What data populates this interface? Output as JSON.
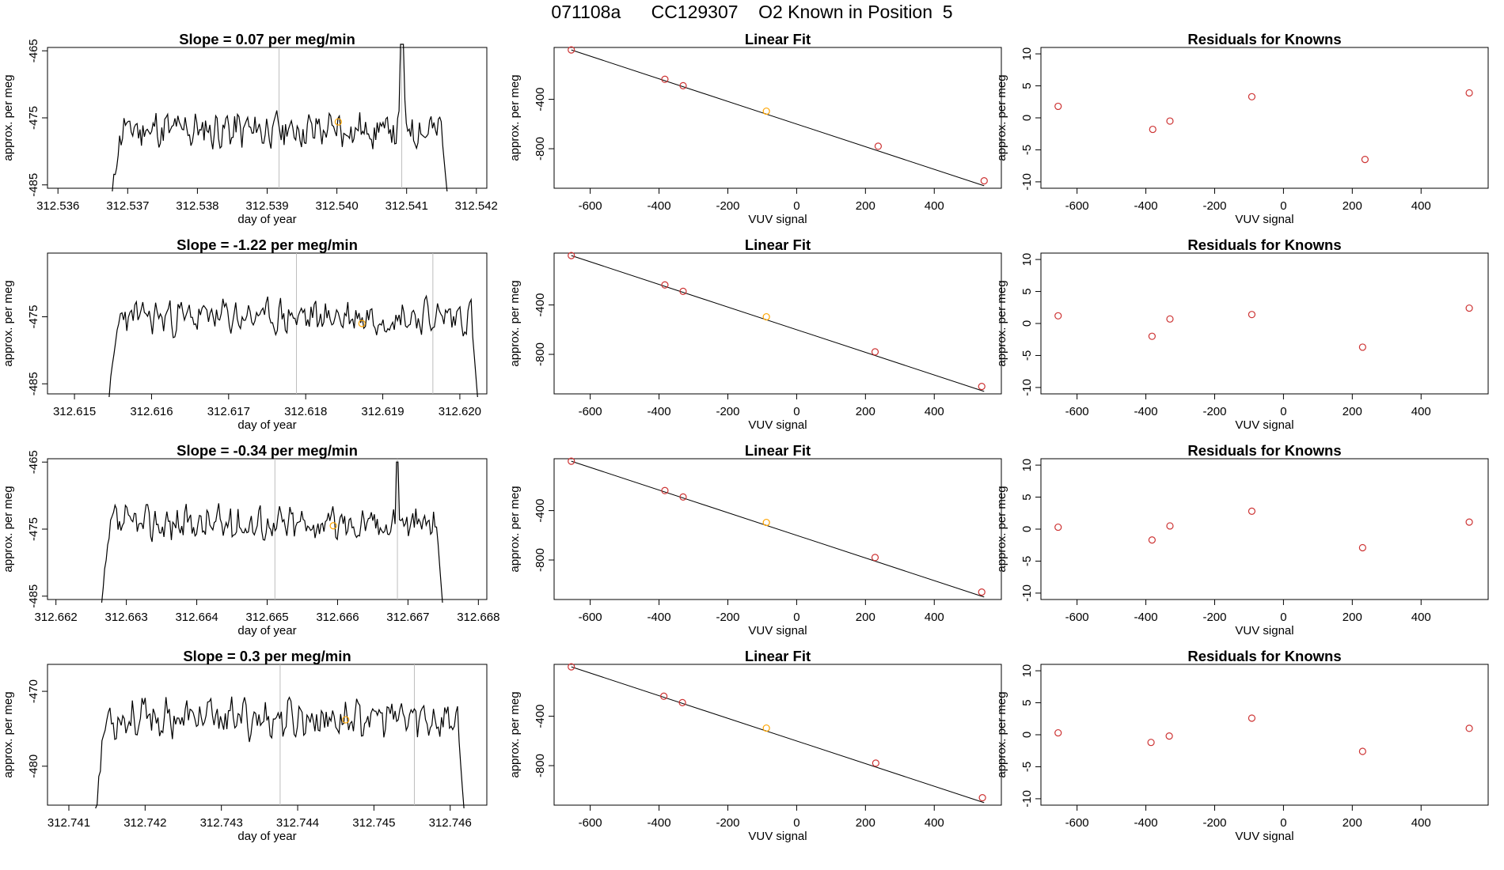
{
  "header": {
    "title": "071108a      CC129307    O2 Known in Position  5"
  },
  "colors": {
    "line": "#000000",
    "vline": "#bebebe",
    "known_point": "#cd3333",
    "sample_point": "#ffa500"
  },
  "chart_data": [
    {
      "type": "line",
      "title": "Slope =  0.07  per meg/min",
      "xlabel": "day of year",
      "ylabel": "approx. per meg",
      "xlim": [
        312.53585,
        312.54215
      ],
      "ylim": [
        -485.5,
        -464.5
      ],
      "xticks": [
        "312.536",
        "312.537",
        "312.538",
        "312.539",
        "312.540",
        "312.541",
        "312.542"
      ],
      "yticks": [
        "-485",
        "-475",
        "-465"
      ],
      "start": 312.53678,
      "end": 312.54158,
      "vlines": [
        312.53917,
        312.54093
      ],
      "sample_point": {
        "x": 312.54002,
        "y": -475.6
      },
      "peak_at": 312.54093,
      "seed": 11,
      "base": -476.8,
      "noise": 2.6,
      "low": -486,
      "high": -463
    },
    {
      "type": "line",
      "title": "Slope =  -1.22  per meg/min",
      "xlabel": "day of year",
      "ylabel": "approx. per meg",
      "xlim": [
        312.61465,
        312.62035
      ],
      "ylim": [
        -486.5,
        -465.5
      ],
      "xticks": [
        "312.615",
        "312.616",
        "312.617",
        "312.618",
        "312.619",
        "312.620"
      ],
      "yticks": [
        "-485",
        "-475"
      ],
      "start": 312.61545,
      "end": 312.62023,
      "vlines": [
        312.61788,
        312.61965
      ],
      "sample_point": {
        "x": 312.61873,
        "y": -476.0
      },
      "peak_at": null,
      "seed": 23,
      "base": -475.0,
      "noise": 2.4,
      "low": -487,
      "high": -466
    },
    {
      "type": "line",
      "title": "Slope =  -0.34  per meg/min",
      "xlabel": "day of year",
      "ylabel": "approx. per meg",
      "xlim": [
        312.66188,
        312.66812
      ],
      "ylim": [
        -485.5,
        -464.5
      ],
      "xticks": [
        "312.662",
        "312.663",
        "312.664",
        "312.665",
        "312.666",
        "312.667",
        "312.668"
      ],
      "yticks": [
        "-485",
        "-475",
        "-465"
      ],
      "start": 312.66265,
      "end": 312.66749,
      "vlines": [
        312.66511,
        312.66685
      ],
      "sample_point": {
        "x": 312.66594,
        "y": -474.5
      },
      "peak_at": 312.66685,
      "seed": 37,
      "base": -474.2,
      "noise": 2.4,
      "low": -486,
      "high": -465
    },
    {
      "type": "line",
      "title": "Slope =  0.3  per meg/min",
      "xlabel": "day of year",
      "ylabel": "approx. per meg",
      "xlim": [
        312.74072,
        312.74648
      ],
      "ylim": [
        -485.2,
        -466.4
      ],
      "xticks": [
        "312.741",
        "312.742",
        "312.743",
        "312.744",
        "312.745",
        "312.746"
      ],
      "yticks": [
        "-480",
        "-470"
      ],
      "start": 312.74135,
      "end": 312.74618,
      "vlines": [
        312.74377,
        312.74553
      ],
      "sample_point": {
        "x": 312.74463,
        "y": -473.8
      },
      "peak_at": null,
      "seed": 53,
      "base": -473.6,
      "noise": 2.4,
      "low": -486,
      "high": -467
    },
    {
      "type": "scatter",
      "title": "Linear Fit",
      "xlabel": "VUV signal",
      "ylabel": "approx. per meg",
      "xlim": [
        -705,
        595
      ],
      "ylim": [
        -1120,
        20
      ],
      "xticks": [
        "-600",
        "-400",
        "-200",
        "0",
        "200",
        "400"
      ],
      "yticks": [
        "-400",
        "-800"
      ],
      "fit_line": {
        "x1": -655,
        "y1": 0,
        "x2": 545,
        "y2": -1100
      },
      "points": [
        {
          "x": -655,
          "y": 0,
          "kind": "known"
        },
        {
          "x": -383,
          "y": -238,
          "kind": "known"
        },
        {
          "x": -330,
          "y": -290,
          "kind": "known"
        },
        {
          "x": -88,
          "y": -496,
          "kind": "sample"
        },
        {
          "x": 237,
          "y": -780,
          "kind": "known"
        },
        {
          "x": 545,
          "y": -1060,
          "kind": "known"
        }
      ]
    },
    {
      "type": "scatter",
      "title": "Linear Fit",
      "xlabel": "VUV signal",
      "ylabel": "approx. per meg",
      "xlim": [
        -705,
        595
      ],
      "ylim": [
        -1120,
        20
      ],
      "xticks": [
        "-600",
        "-400",
        "-200",
        "0",
        "200",
        "400"
      ],
      "yticks": [
        "-400",
        "-800"
      ],
      "fit_line": {
        "x1": -655,
        "y1": 0,
        "x2": 545,
        "y2": -1100
      },
      "points": [
        {
          "x": -655,
          "y": 0,
          "kind": "known"
        },
        {
          "x": -383,
          "y": -238,
          "kind": "known"
        },
        {
          "x": -330,
          "y": -290,
          "kind": "known"
        },
        {
          "x": -88,
          "y": -496,
          "kind": "sample"
        },
        {
          "x": 228,
          "y": -780,
          "kind": "known"
        },
        {
          "x": 538,
          "y": -1060,
          "kind": "known"
        }
      ]
    },
    {
      "type": "scatter",
      "title": "Linear Fit",
      "xlabel": "VUV signal",
      "ylabel": "approx. per meg",
      "xlim": [
        -705,
        595
      ],
      "ylim": [
        -1120,
        20
      ],
      "xticks": [
        "-600",
        "-400",
        "-200",
        "0",
        "200",
        "400"
      ],
      "yticks": [
        "-400",
        "-800"
      ],
      "fit_line": {
        "x1": -655,
        "y1": 0,
        "x2": 545,
        "y2": -1100
      },
      "points": [
        {
          "x": -655,
          "y": 0,
          "kind": "known"
        },
        {
          "x": -383,
          "y": -238,
          "kind": "known"
        },
        {
          "x": -330,
          "y": -290,
          "kind": "known"
        },
        {
          "x": -88,
          "y": -496,
          "kind": "sample"
        },
        {
          "x": 228,
          "y": -780,
          "kind": "known"
        },
        {
          "x": 538,
          "y": -1060,
          "kind": "known"
        }
      ]
    },
    {
      "type": "scatter",
      "title": "Linear Fit",
      "xlabel": "VUV signal",
      "ylabel": "approx. per meg",
      "xlim": [
        -705,
        595
      ],
      "ylim": [
        -1120,
        20
      ],
      "xticks": [
        "-600",
        "-400",
        "-200",
        "0",
        "200",
        "400"
      ],
      "yticks": [
        "-400",
        "-800"
      ],
      "fit_line": {
        "x1": -655,
        "y1": 0,
        "x2": 545,
        "y2": -1100
      },
      "points": [
        {
          "x": -655,
          "y": 0,
          "kind": "known"
        },
        {
          "x": -386,
          "y": -238,
          "kind": "known"
        },
        {
          "x": -332,
          "y": -290,
          "kind": "known"
        },
        {
          "x": -88,
          "y": -496,
          "kind": "sample"
        },
        {
          "x": 230,
          "y": -780,
          "kind": "known"
        },
        {
          "x": 540,
          "y": -1060,
          "kind": "known"
        }
      ]
    },
    {
      "type": "scatter",
      "title": "Residuals for Knowns",
      "xlabel": "VUV signal",
      "ylabel": "approx. per meg",
      "xlim": [
        -705,
        595
      ],
      "ylim": [
        -11,
        11
      ],
      "xticks": [
        "-600",
        "-400",
        "-200",
        "0",
        "200",
        "400"
      ],
      "yticks": [
        "-10",
        "-5",
        "0",
        "5",
        "10"
      ],
      "points": [
        {
          "x": -655,
          "y": 1.8
        },
        {
          "x": -380,
          "y": -1.8
        },
        {
          "x": -330,
          "y": -0.5
        },
        {
          "x": -92,
          "y": 3.3
        },
        {
          "x": 237,
          "y": -6.5
        },
        {
          "x": 540,
          "y": 3.9
        }
      ]
    },
    {
      "type": "scatter",
      "title": "Residuals for Knowns",
      "xlabel": "VUV signal",
      "ylabel": "approx. per meg",
      "xlim": [
        -705,
        595
      ],
      "ylim": [
        -11,
        11
      ],
      "xticks": [
        "-600",
        "-400",
        "-200",
        "0",
        "200",
        "400"
      ],
      "yticks": [
        "-10",
        "-5",
        "0",
        "5",
        "10"
      ],
      "points": [
        {
          "x": -655,
          "y": 1.2
        },
        {
          "x": -382,
          "y": -2.0
        },
        {
          "x": -330,
          "y": 0.7
        },
        {
          "x": -92,
          "y": 1.4
        },
        {
          "x": 230,
          "y": -3.7
        },
        {
          "x": 540,
          "y": 2.4
        }
      ]
    },
    {
      "type": "scatter",
      "title": "Residuals for Knowns",
      "xlabel": "VUV signal",
      "ylabel": "approx. per meg",
      "xlim": [
        -705,
        595
      ],
      "ylim": [
        -11,
        11
      ],
      "xticks": [
        "-600",
        "-400",
        "-200",
        "0",
        "200",
        "400"
      ],
      "yticks": [
        "-10",
        "-5",
        "0",
        "5",
        "10"
      ],
      "points": [
        {
          "x": -655,
          "y": 0.3
        },
        {
          "x": -382,
          "y": -1.7
        },
        {
          "x": -330,
          "y": 0.5
        },
        {
          "x": -92,
          "y": 2.8
        },
        {
          "x": 230,
          "y": -2.9
        },
        {
          "x": 540,
          "y": 1.1
        }
      ]
    },
    {
      "type": "scatter",
      "title": "Residuals for Knowns",
      "xlabel": "VUV signal",
      "ylabel": "approx. per meg",
      "xlim": [
        -705,
        595
      ],
      "ylim": [
        -11,
        11
      ],
      "xticks": [
        "-600",
        "-400",
        "-200",
        "0",
        "200",
        "400"
      ],
      "yticks": [
        "-10",
        "-5",
        "0",
        "5",
        "10"
      ],
      "points": [
        {
          "x": -655,
          "y": 0.3
        },
        {
          "x": -385,
          "y": -1.2
        },
        {
          "x": -332,
          "y": -0.2
        },
        {
          "x": -92,
          "y": 2.6
        },
        {
          "x": 230,
          "y": -2.6
        },
        {
          "x": 540,
          "y": 1.0
        }
      ]
    }
  ]
}
